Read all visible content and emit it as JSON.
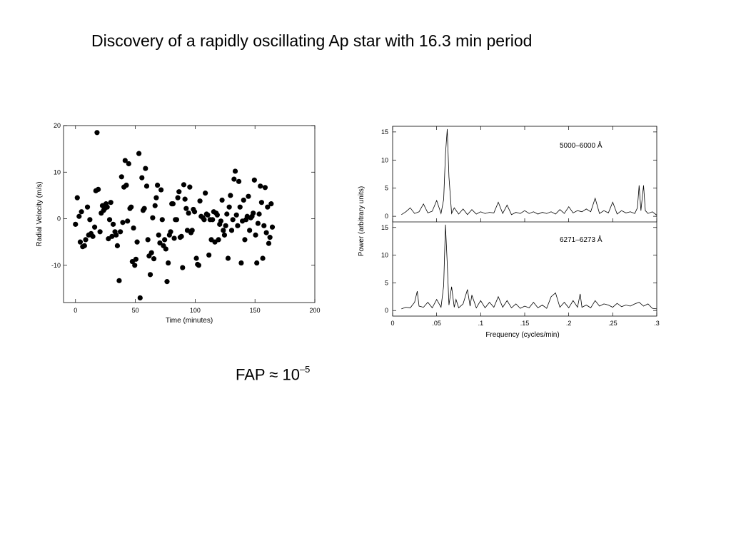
{
  "slide": {
    "title": "Discovery of a rapidly oscillating Ap star with 16.3 min period",
    "fap_label": "FAP ≈ 10",
    "fap_exponent": "–5"
  },
  "chart_data": [
    {
      "type": "scatter",
      "xlabel": "Time (minutes)",
      "ylabel": "Radial Velocity (m/s)",
      "xlim": [
        -10,
        200
      ],
      "ylim": [
        -18,
        20
      ],
      "xticks": [
        0,
        50,
        100,
        150,
        200
      ],
      "yticks": [
        -10,
        0,
        10,
        20
      ],
      "grid": false,
      "marker_color": "#000000",
      "points": [
        [
          0,
          -1.2
        ],
        [
          1.5,
          4.5
        ],
        [
          3,
          0.5
        ],
        [
          4,
          -5
        ],
        [
          5,
          1.5
        ],
        [
          6,
          -6
        ],
        [
          7.5,
          -5.8
        ],
        [
          8.5,
          -4.5
        ],
        [
          10,
          2.5
        ],
        [
          11,
          -3.5
        ],
        [
          12,
          -0.2
        ],
        [
          13,
          -3.2
        ],
        [
          14.5,
          -3.8
        ],
        [
          16,
          -1.8
        ],
        [
          17,
          6
        ],
        [
          18,
          18.5
        ],
        [
          19,
          6.3
        ],
        [
          20.5,
          -2.8
        ],
        [
          21.5,
          1.2
        ],
        [
          22.5,
          2.8
        ],
        [
          23.5,
          1.8
        ],
        [
          24.5,
          2.2
        ],
        [
          25.5,
          3.2
        ],
        [
          26.5,
          2.5
        ],
        [
          27.5,
          -4.3
        ],
        [
          28.5,
          -0.2
        ],
        [
          29.5,
          3.5
        ],
        [
          30.5,
          -3.8
        ],
        [
          31.5,
          -1.2
        ],
        [
          33,
          -2.8
        ],
        [
          34,
          -3.5
        ],
        [
          35,
          -5.8
        ],
        [
          36.5,
          -13.3
        ],
        [
          37.5,
          -2.8
        ],
        [
          38.5,
          9
        ],
        [
          39.5,
          -0.8
        ],
        [
          40.5,
          6.8
        ],
        [
          41.5,
          12.5
        ],
        [
          42.5,
          7.2
        ],
        [
          43.5,
          -0.5
        ],
        [
          44.5,
          11.8
        ],
        [
          45.5,
          2.2
        ],
        [
          46.5,
          2.5
        ],
        [
          47.5,
          -9.2
        ],
        [
          48.5,
          -2
        ],
        [
          49.5,
          -10
        ],
        [
          50.5,
          -8.7
        ],
        [
          51.5,
          -5
        ],
        [
          53,
          14
        ],
        [
          54,
          -17
        ],
        [
          55.5,
          8.8
        ],
        [
          56.5,
          1.8
        ],
        [
          57.5,
          2.2
        ],
        [
          58.5,
          10.8
        ],
        [
          59.5,
          7
        ],
        [
          60.5,
          -4.5
        ],
        [
          61.5,
          -8
        ],
        [
          62.5,
          -12
        ],
        [
          63.5,
          -7.3
        ],
        [
          64.5,
          0.2
        ],
        [
          65.5,
          -8.6
        ],
        [
          66.5,
          2.8
        ],
        [
          67.5,
          4.5
        ],
        [
          68.5,
          7.2
        ],
        [
          69.5,
          -3.5
        ],
        [
          70.5,
          -5.2
        ],
        [
          71.5,
          6.2
        ],
        [
          72.5,
          -0.2
        ],
        [
          73.5,
          -5.8
        ],
        [
          74.5,
          -4.5
        ],
        [
          75.5,
          -6.5
        ],
        [
          76.5,
          -13.5
        ],
        [
          77.5,
          -9.5
        ],
        [
          78.5,
          -3.5
        ],
        [
          79.5,
          -2.8
        ],
        [
          80.5,
          3.2
        ],
        [
          81.5,
          3.2
        ],
        [
          82.5,
          -4.2
        ],
        [
          83.5,
          -0.2
        ],
        [
          84.5,
          -0.2
        ],
        [
          85.5,
          4.5
        ],
        [
          86.5,
          5.8
        ],
        [
          87.5,
          -4
        ],
        [
          88.5,
          -3.8
        ],
        [
          89.5,
          -10.5
        ],
        [
          90.5,
          7.3
        ],
        [
          91.5,
          4.2
        ],
        [
          92.5,
          2.2
        ],
        [
          93.5,
          -2.5
        ],
        [
          94.5,
          1.2
        ],
        [
          95.5,
          6.8
        ],
        [
          96.5,
          -3
        ],
        [
          97.5,
          -2.5
        ],
        [
          98.5,
          2
        ],
        [
          99.5,
          1.5
        ],
        [
          101,
          -8.5
        ],
        [
          102,
          -9.8
        ],
        [
          103,
          -10
        ],
        [
          104,
          3.8
        ],
        [
          105,
          0.5
        ],
        [
          106.5,
          0.2
        ],
        [
          107.5,
          -0.2
        ],
        [
          108.5,
          5.5
        ],
        [
          109.5,
          1
        ],
        [
          110.5,
          0.8
        ],
        [
          111.5,
          -7.8
        ],
        [
          112.5,
          -0.2
        ],
        [
          113.5,
          -4.5
        ],
        [
          114.5,
          -0.2
        ],
        [
          115.5,
          1.5
        ],
        [
          116.5,
          -5
        ],
        [
          117.5,
          1.2
        ],
        [
          118.5,
          0.8
        ],
        [
          119.5,
          -4.5
        ],
        [
          120.5,
          -1.2
        ],
        [
          121.5,
          -0.5
        ],
        [
          122.5,
          4
        ],
        [
          123.5,
          -2.5
        ],
        [
          124.5,
          -3.5
        ],
        [
          125.5,
          -1.5
        ],
        [
          126.5,
          1
        ],
        [
          127.5,
          -8.5
        ],
        [
          128.5,
          2.5
        ],
        [
          129.5,
          5
        ],
        [
          130.5,
          -2.5
        ],
        [
          131.5,
          -0.2
        ],
        [
          132.5,
          8.5
        ],
        [
          133.5,
          10.2
        ],
        [
          134.5,
          0.8
        ],
        [
          135.5,
          -1.5
        ],
        [
          136.5,
          8
        ],
        [
          137.5,
          2.5
        ],
        [
          138.5,
          -9.5
        ],
        [
          139.5,
          -0.5
        ],
        [
          140.5,
          4
        ],
        [
          141.5,
          -4.5
        ],
        [
          142.5,
          -0.2
        ],
        [
          143.5,
          0.5
        ],
        [
          144.5,
          4.8
        ],
        [
          145.5,
          -2.5
        ],
        [
          146.5,
          0.2
        ],
        [
          147.5,
          0.5
        ],
        [
          148.5,
          1.2
        ],
        [
          149.5,
          8.3
        ],
        [
          150.5,
          -3.5
        ],
        [
          151.5,
          -9.5
        ],
        [
          152.5,
          -1
        ],
        [
          153.5,
          1
        ],
        [
          154.5,
          7
        ],
        [
          155.5,
          3.5
        ],
        [
          156.5,
          -8.5
        ],
        [
          157.5,
          -1.5
        ],
        [
          158.5,
          6.7
        ],
        [
          159.5,
          -3
        ],
        [
          160.5,
          2.5
        ],
        [
          161.5,
          -5.3
        ],
        [
          162.5,
          -4
        ],
        [
          163.5,
          3.2
        ],
        [
          164.5,
          -1.8
        ]
      ]
    },
    {
      "type": "line",
      "xlabel": "Frequency (cycles/min)",
      "ylabel": "Power (arbitrary units)",
      "xlim": [
        0,
        0.3
      ],
      "xticks": [
        0,
        0.05,
        0.1,
        0.15,
        0.2,
        0.25,
        0.3
      ],
      "xticklabels": [
        "0",
        ".05",
        ".1",
        ".15",
        ".2",
        ".25",
        ".3"
      ],
      "panels": [
        {
          "annotation": "5000–6000 Å",
          "ylim": [
            -1,
            16
          ],
          "yticks": [
            0,
            5,
            10,
            15
          ],
          "x": [
            0.01,
            0.015,
            0.02,
            0.025,
            0.03,
            0.035,
            0.04,
            0.045,
            0.05,
            0.055,
            0.058,
            0.06,
            0.062,
            0.064,
            0.067,
            0.07,
            0.075,
            0.08,
            0.085,
            0.09,
            0.095,
            0.1,
            0.105,
            0.11,
            0.115,
            0.12,
            0.125,
            0.13,
            0.135,
            0.14,
            0.145,
            0.15,
            0.155,
            0.16,
            0.165,
            0.17,
            0.175,
            0.18,
            0.185,
            0.19,
            0.195,
            0.2,
            0.205,
            0.21,
            0.215,
            0.22,
            0.225,
            0.23,
            0.235,
            0.24,
            0.245,
            0.25,
            0.255,
            0.26,
            0.265,
            0.27,
            0.275,
            0.278,
            0.28,
            0.282,
            0.285,
            0.287,
            0.29,
            0.295,
            0.3
          ],
          "y": [
            0.3,
            0.8,
            1.5,
            0.5,
            0.8,
            2.2,
            0.6,
            0.9,
            2.8,
            0.5,
            3,
            11,
            15.5,
            7,
            0.5,
            1.5,
            0.4,
            1.3,
            0.3,
            1.2,
            0.4,
            0.8,
            0.5,
            0.7,
            0.6,
            2.5,
            0.5,
            2.0,
            0.3,
            0.7,
            0.5,
            1.0,
            0.5,
            0.8,
            0.4,
            0.7,
            0.5,
            0.8,
            0.4,
            1.2,
            0.5,
            1.7,
            0.6,
            1.0,
            0.8,
            1.3,
            0.8,
            3.2,
            0.5,
            1.0,
            0.6,
            2.5,
            0.4,
            1.0,
            0.6,
            0.8,
            0.5,
            1.5,
            5.5,
            1.0,
            5.5,
            1.0,
            0.5,
            0.8,
            0.2
          ]
        },
        {
          "annotation": "6271–6273 Å",
          "ylim": [
            -1,
            16
          ],
          "yticks": [
            0,
            5,
            10,
            15
          ],
          "x": [
            0.01,
            0.015,
            0.02,
            0.025,
            0.028,
            0.03,
            0.035,
            0.04,
            0.045,
            0.05,
            0.055,
            0.058,
            0.06,
            0.062,
            0.064,
            0.067,
            0.07,
            0.072,
            0.075,
            0.08,
            0.085,
            0.088,
            0.09,
            0.095,
            0.1,
            0.105,
            0.11,
            0.115,
            0.12,
            0.125,
            0.13,
            0.135,
            0.14,
            0.145,
            0.15,
            0.155,
            0.16,
            0.165,
            0.17,
            0.175,
            0.18,
            0.185,
            0.19,
            0.195,
            0.2,
            0.205,
            0.21,
            0.213,
            0.215,
            0.22,
            0.225,
            0.23,
            0.235,
            0.24,
            0.245,
            0.25,
            0.255,
            0.26,
            0.265,
            0.27,
            0.275,
            0.28,
            0.285,
            0.29,
            0.295,
            0.3
          ],
          "y": [
            0.3,
            0.6,
            0.5,
            1.5,
            3.5,
            0.8,
            0.6,
            1.5,
            0.5,
            2.0,
            0.6,
            4.5,
            15.5,
            8.5,
            1.0,
            4.3,
            0.6,
            2.0,
            0.5,
            1.2,
            3.8,
            0.8,
            2.8,
            0.5,
            1.8,
            0.5,
            1.5,
            0.6,
            2.5,
            0.6,
            1.8,
            0.5,
            1.2,
            0.4,
            0.8,
            0.5,
            1.5,
            0.5,
            1.0,
            0.4,
            2.5,
            3.2,
            0.6,
            1.5,
            0.5,
            1.8,
            0.6,
            3.0,
            0.6,
            1.0,
            0.5,
            1.8,
            0.8,
            1.2,
            1.0,
            0.6,
            1.3,
            0.7,
            1.0,
            0.8,
            1.2,
            1.5,
            0.8,
            1.2,
            0.4,
            0.3
          ]
        }
      ]
    }
  ]
}
